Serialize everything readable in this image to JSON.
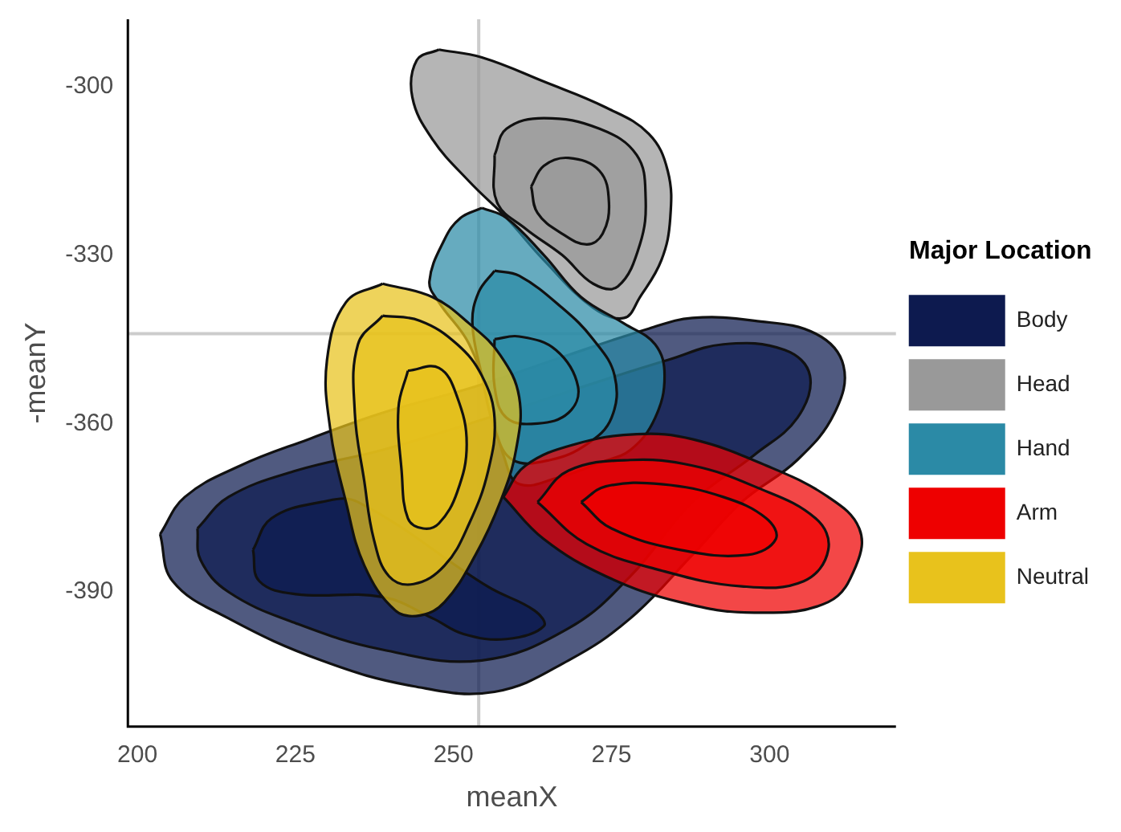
{
  "chart_data": {
    "type": "area",
    "xlabel": "meanX",
    "ylabel": "-meanY",
    "legend_title": "Major Location",
    "legend": "right",
    "grid": false,
    "marker": "none",
    "line_style": "solid",
    "xlim": [
      198.5,
      320
    ],
    "xticks": [
      200,
      225,
      250,
      275,
      300
    ],
    "ylim": [
      -414,
      -288
    ],
    "yticks": [
      -300,
      -330,
      -360,
      -390
    ],
    "ref_lines": [
      {
        "axis": "x",
        "value": 254,
        "color": "#cccccc"
      },
      {
        "axis": "y",
        "value": -344,
        "color": "#cccccc"
      }
    ],
    "series": [
      {
        "name": "Body",
        "color": "#0d1a4f",
        "x": [
          203.6,
          207.5,
          216.3,
          227.1,
          238.8,
          253.5,
          268.2,
          280.9,
          287.8,
          297.6,
          307.3,
          311.7,
          310.3,
          304.4,
          295.6,
          287.8,
          278.0,
          268.2,
          256.5,
          243.7,
          229.1,
          214.4,
          205.6
        ],
        "values": [
          -379.7,
          -373.1,
          -367.5,
          -362.8,
          -358.1,
          -353.4,
          -347.8,
          -343.1,
          -341.2,
          -341.7,
          -344.0,
          -349.7,
          -358.1,
          -366.5,
          -374.0,
          -383.4,
          -394.7,
          -402.2,
          -407.8,
          -406.8,
          -402.2,
          -394.7,
          -388.1
        ]
      },
      {
        "color": "#0d1a4f",
        "x": [
          209.5,
          214.4,
          225.1,
          238.8,
          255.5,
          273.1,
          283.9,
          292.7,
          302.4,
          306.4,
          304.4,
          297.6,
          287.8,
          278.0,
          268.2,
          254.5,
          238.8,
          225.1,
          214.4,
          210.0
        ],
        "values": [
          -378.7,
          -373.1,
          -368.4,
          -364.7,
          -359.0,
          -352.5,
          -348.7,
          -345.9,
          -346.9,
          -351.5,
          -359.0,
          -365.6,
          -374.0,
          -387.2,
          -396.5,
          -402.2,
          -400.3,
          -395.6,
          -390.0,
          -384.3
        ]
      },
      {
        "color": "#0d1a4f",
        "x": [
          218.3,
          221.2,
          229.1,
          234.9,
          255.5,
          262.8,
          264.3,
          258.4,
          251.6,
          246.7,
          238.8,
          225.1,
          219.3
        ],
        "values": [
          -382.5,
          -376.9,
          -374.0,
          -374.0,
          -389.1,
          -393.3,
          -396.1,
          -398.4,
          -397.5,
          -394.7,
          -390.9,
          -390.4,
          -388.1
        ]
      },
      {
        "name": "Head",
        "color": "#999999",
        "x": [
          247.7,
          254.5,
          264.3,
          274.1,
          280.9,
          283.9,
          284.3,
          282.9,
          279.5,
          277.0,
          272.1,
          264.3,
          258.4,
          252.5,
          246.7,
          243.5,
          244.2
        ],
        "values": [
          -293.4,
          -294.8,
          -299.1,
          -303.7,
          -308.4,
          -315.0,
          -323.4,
          -330.9,
          -337.5,
          -341.2,
          -339.4,
          -330.9,
          -323.4,
          -316.9,
          -309.4,
          -301.9,
          -295.3
        ]
      },
      {
        "color": "#999999",
        "x": [
          256.5,
          258.4,
          264.3,
          273.1,
          279.0,
          280.4,
          279.5,
          276.0,
          272.1,
          267.2,
          261.4,
          256.9
        ],
        "values": [
          -312.2,
          -307.5,
          -305.6,
          -307.5,
          -312.2,
          -319.7,
          -328.1,
          -335.6,
          -335.1,
          -330.0,
          -325.3,
          -320.6
        ]
      },
      {
        "color": "#999999",
        "x": [
          262.3,
          264.3,
          268.2,
          273.1,
          274.6,
          273.6,
          271.1,
          267.2,
          263.3
        ],
        "values": [
          -317.8,
          -314.1,
          -312.7,
          -315.0,
          -320.6,
          -326.2,
          -328.1,
          -326.2,
          -322.5
        ]
      },
      {
        "name": "Hand",
        "color": "#2b8aa6",
        "x": [
          254.5,
          258.4,
          264.3,
          270.2,
          277.0,
          281.9,
          283.4,
          281.9,
          278.0,
          273.1,
          267.2,
          260.4,
          257.9,
          256.0,
          252.5,
          247.7,
          246.2,
          248.6,
          251.1
        ],
        "values": [
          -321.6,
          -323.4,
          -330.0,
          -337.5,
          -342.2,
          -345.9,
          -351.5,
          -359.0,
          -364.7,
          -367.0,
          -369.4,
          -370.8,
          -365.6,
          -357.2,
          -345.9,
          -338.4,
          -334.7,
          -327.2,
          -323.4
        ]
      },
      {
        "color": "#2b8aa6",
        "x": [
          256.5,
          260.4,
          267.2,
          272.1,
          275.5,
          275.0,
          271.1,
          265.3,
          259.4,
          256.5,
          254.5,
          253.0,
          254.0
        ],
        "values": [
          -332.8,
          -333.7,
          -339.4,
          -345.0,
          -351.5,
          -359.0,
          -363.7,
          -366.5,
          -366.5,
          -360.9,
          -351.5,
          -342.2,
          -336.6
        ]
      },
      {
        "color": "#2b8aa6",
        "x": [
          256.5,
          260.4,
          266.2,
          269.7,
          268.2,
          263.3,
          258.4,
          256.5
        ],
        "values": [
          -345.0,
          -344.5,
          -346.9,
          -353.4,
          -358.1,
          -360.0,
          -359.0,
          -353.4
        ]
      },
      {
        "name": "Arm",
        "color": "#ee0000",
        "x": [
          257.9,
          261.4,
          269.2,
          279.0,
          287.8,
          299.5,
          309.3,
          314.2,
          313.7,
          309.3,
          297.6,
          285.8,
          274.1,
          264.3
        ],
        "values": [
          -373.1,
          -367.5,
          -363.7,
          -361.9,
          -362.8,
          -367.5,
          -373.1,
          -378.7,
          -385.3,
          -391.8,
          -393.7,
          -391.8,
          -387.2,
          -380.6
        ]
      },
      {
        "color": "#ee0000",
        "x": [
          263.3,
          268.2,
          278.0,
          287.8,
          297.6,
          307.3,
          309.3,
          305.4,
          295.6,
          282.9,
          271.1
        ],
        "values": [
          -374.0,
          -368.4,
          -366.5,
          -367.5,
          -371.2,
          -376.9,
          -382.5,
          -388.1,
          -389.0,
          -386.2,
          -381.5
        ]
      },
      {
        "color": "#ee0000",
        "x": [
          270.2,
          274.1,
          282.9,
          292.7,
          299.5,
          301.0,
          296.6,
          285.8,
          275.0
        ],
        "values": [
          -374.0,
          -371.2,
          -370.8,
          -373.1,
          -376.9,
          -380.6,
          -383.4,
          -382.5,
          -378.7
        ]
      },
      {
        "name": "Neutral",
        "color": "#e8c21c",
        "x": [
          238.8,
          246.7,
          252.5,
          257.4,
          260.4,
          259.9,
          257.4,
          253.5,
          248.6,
          244.7,
          240.8,
          235.9,
          233.0,
          230.5,
          230.0,
          233.0
        ],
        "values": [
          -335.1,
          -337.5,
          -342.2,
          -347.8,
          -355.3,
          -364.7,
          -374.0,
          -383.4,
          -391.8,
          -394.2,
          -393.3,
          -385.3,
          -374.0,
          -360.9,
          -348.7,
          -338.4
        ]
      },
      {
        "color": "#e8c21c",
        "x": [
          238.8,
          244.7,
          250.6,
          254.5,
          256.5,
          255.5,
          252.5,
          248.6,
          243.7,
          239.8,
          237.4,
          235.9,
          234.4,
          234.9
        ],
        "values": [
          -340.8,
          -341.7,
          -345.9,
          -351.5,
          -359.0,
          -368.4,
          -377.8,
          -385.3,
          -388.6,
          -387.2,
          -380.6,
          -370.3,
          -358.1,
          -345.9
        ]
      },
      {
        "color": "#e8c21c",
        "x": [
          242.8,
          247.7,
          250.6,
          252.1,
          250.6,
          247.7,
          245.2,
          242.8,
          241.8,
          241.3
        ],
        "values": [
          -350.6,
          -350.1,
          -355.3,
          -363.7,
          -372.2,
          -377.8,
          -378.7,
          -376.9,
          -368.4,
          -357.2
        ]
      }
    ]
  }
}
